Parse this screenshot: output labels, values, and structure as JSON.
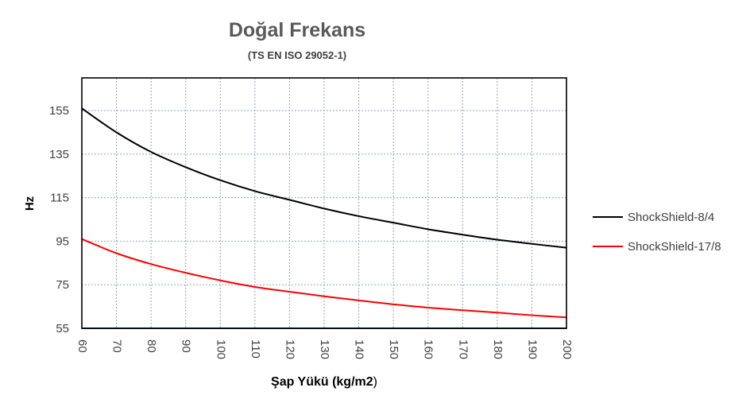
{
  "chart_data": {
    "type": "line",
    "title": "Doğal Frekans",
    "subtitle": "(TS EN ISO 29052-1)",
    "xlabel_main": "Şap Yükü (kg/m2",
    "xlabel_paren": ")",
    "ylabel": "Hz",
    "xlim": [
      60,
      200
    ],
    "ylim": [
      55,
      170
    ],
    "x": [
      60,
      70,
      80,
      90,
      100,
      110,
      120,
      130,
      140,
      150,
      160,
      170,
      180,
      190,
      200
    ],
    "xticks": [
      "60",
      "70",
      "80",
      "90",
      "100",
      "110",
      "120",
      "130",
      "140",
      "150",
      "160",
      "170",
      "180",
      "190",
      "200"
    ],
    "yticks": [
      "55",
      "75",
      "95",
      "115",
      "135",
      "155"
    ],
    "grid": true,
    "legend_position": "right",
    "series": [
      {
        "name": "ShockShield-8/4",
        "color": "#000000",
        "values": [
          156,
          145,
          136,
          129,
          123,
          118,
          114,
          110,
          106.5,
          103.5,
          100.5,
          98,
          95.7,
          93.8,
          92
        ]
      },
      {
        "name": "ShockShield-17/8",
        "color": "#ff0000",
        "values": [
          96,
          89.5,
          84.5,
          80.5,
          77,
          74,
          71.8,
          69.7,
          67.8,
          66,
          64.5,
          63.3,
          62.2,
          61,
          60
        ]
      }
    ]
  }
}
